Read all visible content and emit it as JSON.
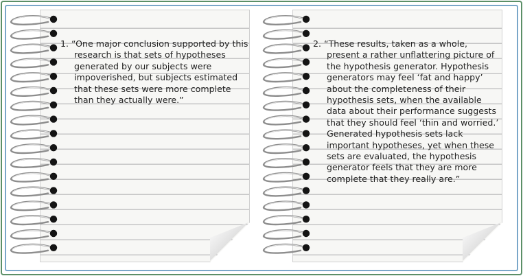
{
  "notes": [
    {
      "number": "1.",
      "quote": "“One major conclusion supported by this research is that sets of hypotheses generated by our subjects were impoverished, but subjects estimated that these sets were more complete than they actually were.”"
    },
    {
      "number": "2.",
      "quote": "“These results, taken as a whole, present a rather unflattering picture of the hypothesis generator. Hypothesis generators may feel ‘fat and happy’ about the completeness of their hypothesis sets, when the available data about their performance suggests that they should feel ‘thin and worried.’ Generated hypothesis sets lack important hypotheses, yet when these sets are evaluated, the hypothesis generator feels that they are more complete that they really are.”"
    }
  ],
  "colors": {
    "outer_border": "#5b8f67",
    "inner_border": "#7aa7c9",
    "paper": "#f7f7f5",
    "rule_line": "#c6c6c6"
  },
  "icons": {
    "binding": "spiral-binding-icon",
    "page_curl": "page-curl-icon"
  }
}
